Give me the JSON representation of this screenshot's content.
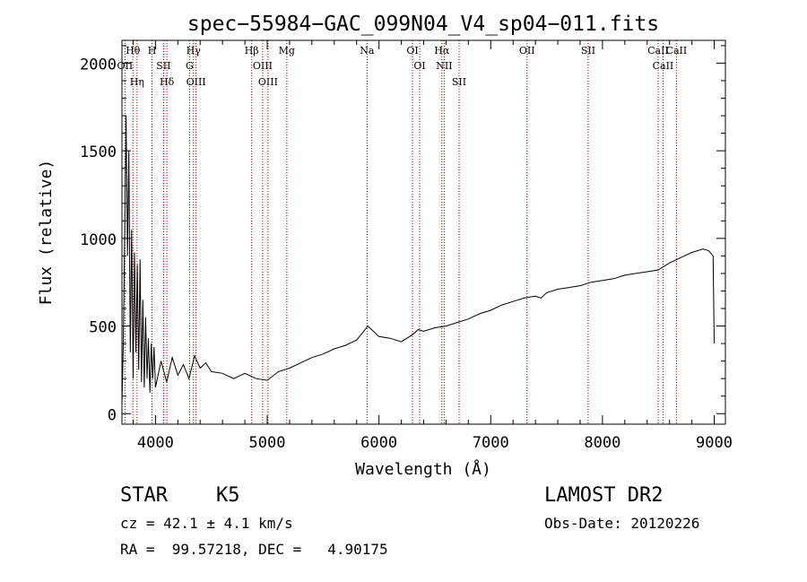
{
  "chart_data": {
    "type": "line",
    "title": "spec−55984−GAC_099N04_V4_sp04−011.fits",
    "xlabel": "Wavelength (Å)",
    "ylabel": "Flux (relative)",
    "xlim": [
      3700,
      9100
    ],
    "ylim": [
      -60,
      2130
    ],
    "xticks": [
      4000,
      5000,
      6000,
      7000,
      8000,
      9000
    ],
    "yticks": [
      0,
      500,
      1000,
      1500,
      2000
    ],
    "grid": false,
    "line_color": "#000000",
    "marker_line_color": "#8b0000",
    "series": [
      {
        "x": [
          3700,
          3712,
          3725,
          3737,
          3750,
          3762,
          3775,
          3787,
          3800,
          3812,
          3825,
          3837,
          3850,
          3862,
          3875,
          3887,
          3900,
          3912,
          3925,
          3937,
          3950,
          3962,
          3975,
          3987,
          4000,
          4050,
          4100,
          4150,
          4200,
          4250,
          4300,
          4350,
          4400,
          4450,
          4500,
          4600,
          4700,
          4800,
          4900,
          5000,
          5100,
          5200,
          5300,
          5400,
          5500,
          5600,
          5700,
          5800,
          5850,
          5900,
          5950,
          6000,
          6100,
          6200,
          6300,
          6350,
          6400,
          6500,
          6600,
          6700,
          6800,
          6900,
          7000,
          7100,
          7200,
          7300,
          7400,
          7450,
          7500,
          7600,
          7700,
          7800,
          7900,
          8000,
          8100,
          8200,
          8300,
          8400,
          8500,
          8600,
          8700,
          8800,
          8900,
          8950,
          8990,
          9000
        ],
        "y": [
          50,
          400,
          1050,
          1700,
          900,
          1500,
          350,
          1050,
          200,
          920,
          350,
          850,
          250,
          880,
          180,
          650,
          150,
          550,
          200,
          430,
          120,
          400,
          200,
          380,
          150,
          300,
          180,
          320,
          220,
          280,
          200,
          330,
          260,
          290,
          240,
          230,
          200,
          230,
          200,
          190,
          240,
          260,
          290,
          320,
          340,
          370,
          390,
          420,
          460,
          500,
          470,
          440,
          430,
          410,
          450,
          480,
          470,
          490,
          500,
          520,
          540,
          570,
          590,
          620,
          640,
          660,
          670,
          660,
          690,
          710,
          720,
          730,
          750,
          760,
          770,
          790,
          800,
          810,
          820,
          860,
          890,
          920,
          940,
          930,
          900,
          400
        ]
      }
    ],
    "lines": [
      "Hθ",
      "OII",
      "Hη",
      "H",
      "SII",
      "Hδ",
      "Hγ",
      "G",
      "OIII",
      "Hβ",
      "OIII",
      "OIII",
      "Mg",
      "Na",
      "OI",
      "OI",
      "Hα",
      "NII",
      "SII",
      "OII",
      "SII",
      "CaII",
      "CaII",
      "CaII"
    ],
    "line_wavelengths": [
      3798,
      3727,
      3835,
      3969,
      4072,
      4102,
      4340,
      4305,
      4363,
      4861,
      4959,
      5007,
      5175,
      5893,
      6300,
      6364,
      6563,
      6584,
      6717,
      7325,
      7872,
      8498,
      8542,
      8662
    ]
  },
  "info": {
    "object_class": "STAR",
    "subclass": "K5",
    "survey": "LAMOST DR2",
    "redshift_line": "cz = 42.1 ± 4.1 km/s",
    "obs_date_line": "Obs-Date: 20120226",
    "coords_line": "RA =  99.57218, DEC =   4.90175"
  }
}
